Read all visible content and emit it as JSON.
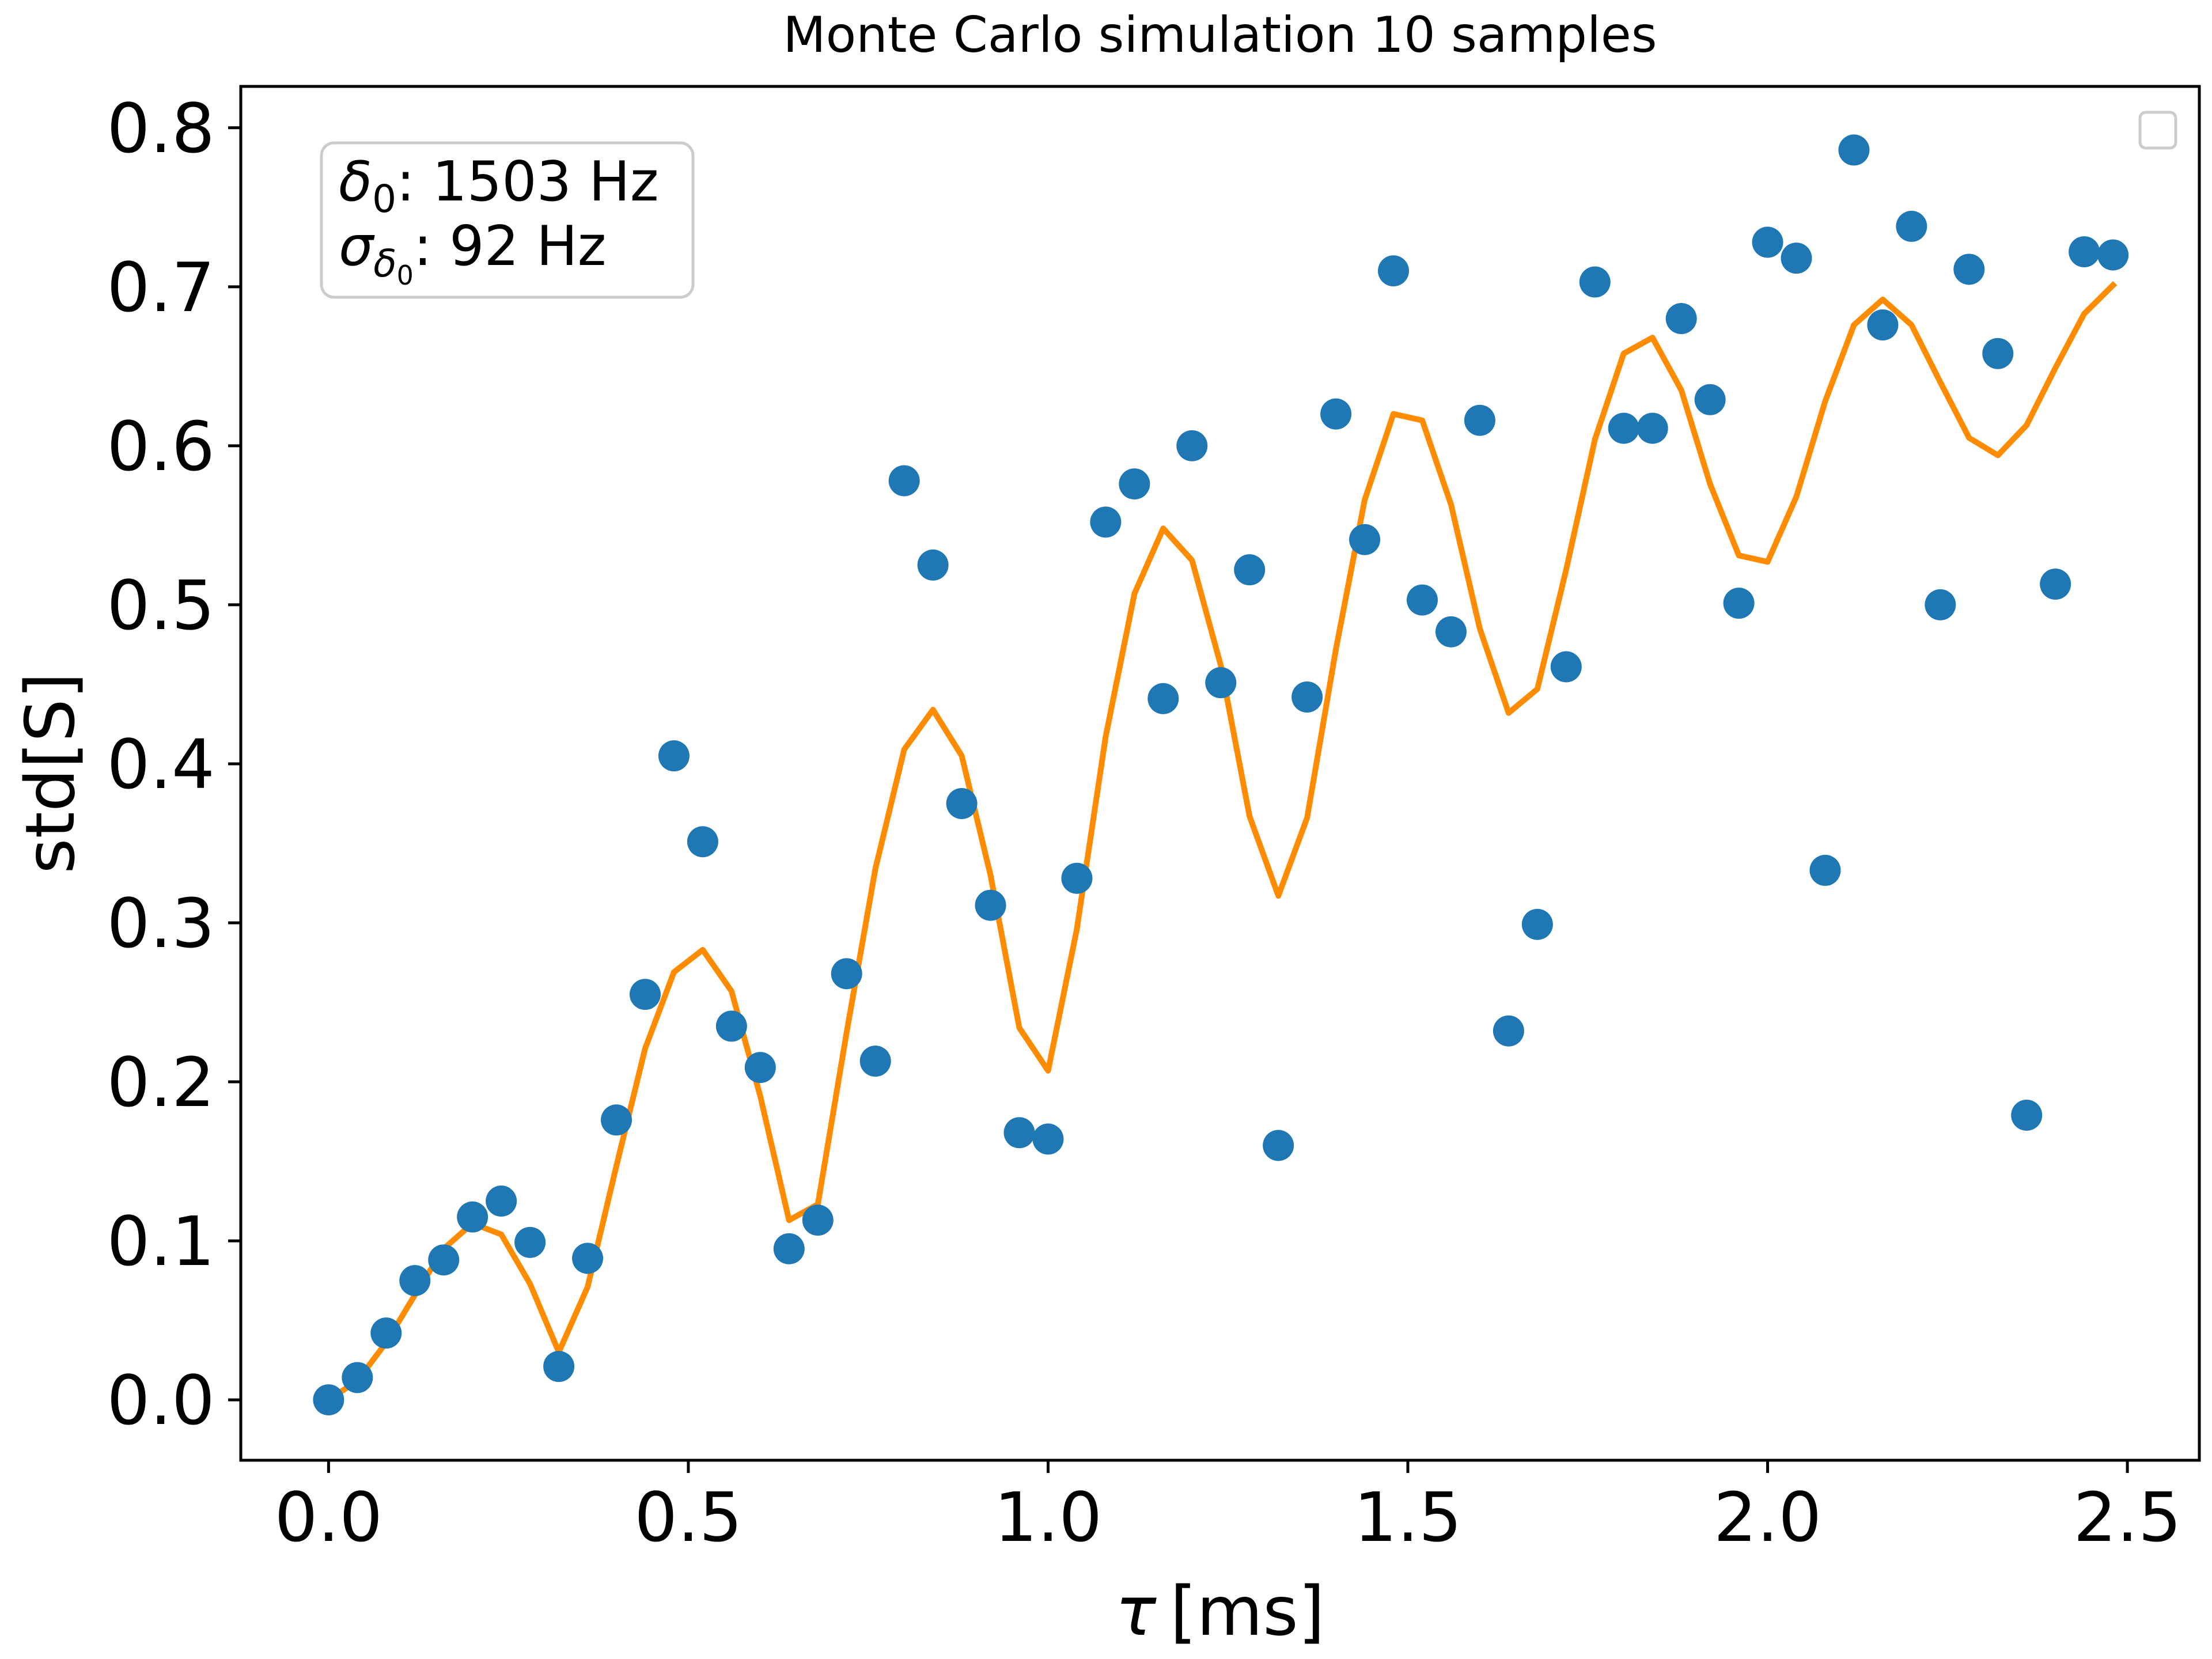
{
  "chart_data": {
    "type": "scatter",
    "title": "Monte Carlo simulation 10 samples",
    "xlabel_symbol": "τ",
    "xlabel_unit": "[ms]",
    "ylabel": "std[S]",
    "xlim": [
      -0.122,
      2.6
    ],
    "ylim": [
      -0.038,
      0.826
    ],
    "xticks": [
      0.0,
      0.5,
      1.0,
      1.5,
      2.0,
      2.5
    ],
    "xtick_labels": [
      "0.0",
      "0.5",
      "1.0",
      "1.5",
      "2.0",
      "2.5"
    ],
    "yticks": [
      0.0,
      0.1,
      0.2,
      0.3,
      0.4,
      0.5,
      0.6,
      0.7,
      0.8
    ],
    "ytick_labels": [
      "0.0",
      "0.1",
      "0.2",
      "0.3",
      "0.4",
      "0.5",
      "0.6",
      "0.7",
      "0.8"
    ],
    "grid": false,
    "legend": "upper right, empty",
    "annotation": {
      "line1_symbol": "δ",
      "line1_sub": "0",
      "line1_value": ": 1503 Hz",
      "line2_symbol": "σ",
      "line2_sub": "δ",
      "line2_subsub": "0",
      "line2_value": ": 92 Hz",
      "placement": "upper-left"
    },
    "colors": {
      "points": "#1f77b4",
      "line": "#ff8c00"
    },
    "series": [
      {
        "type": "scatter",
        "x": [
          0.0,
          0.04,
          0.08,
          0.12,
          0.16,
          0.2,
          0.24,
          0.28,
          0.32,
          0.36,
          0.4,
          0.44,
          0.48,
          0.52,
          0.56,
          0.6,
          0.64,
          0.68,
          0.72,
          0.76,
          0.8,
          0.84,
          0.88,
          0.92,
          0.96,
          1.0,
          1.04,
          1.08,
          1.12,
          1.16,
          1.2,
          1.24,
          1.28,
          1.32,
          1.36,
          1.4,
          1.44,
          1.48,
          1.52,
          1.56,
          1.6,
          1.64,
          1.68,
          1.72,
          1.76,
          1.8,
          1.84,
          1.88,
          1.92,
          1.96,
          2.0,
          2.04,
          2.08,
          2.12,
          2.16,
          2.2,
          2.24,
          2.28,
          2.32,
          2.36,
          2.4,
          2.44,
          2.48
        ],
        "y": [
          0.0,
          0.014,
          0.042,
          0.075,
          0.088,
          0.115,
          0.125,
          0.099,
          0.021,
          0.089,
          0.176,
          0.255,
          0.405,
          0.351,
          0.235,
          0.209,
          0.095,
          0.113,
          0.268,
          0.213,
          0.578,
          0.525,
          0.375,
          0.311,
          0.168,
          0.164,
          0.328,
          0.552,
          0.576,
          0.441,
          0.6,
          0.451,
          0.522,
          0.16,
          0.442,
          0.62,
          0.541,
          0.71,
          0.503,
          0.483,
          0.616,
          0.232,
          0.299,
          0.461,
          0.703,
          0.611,
          0.611,
          0.68,
          0.629,
          0.501,
          0.728,
          0.718,
          0.333,
          0.786,
          0.676,
          0.738,
          0.5,
          0.711,
          0.658,
          0.179,
          0.513,
          0.722,
          0.72
        ]
      },
      {
        "type": "line",
        "x": [
          0.0,
          0.04,
          0.08,
          0.12,
          0.16,
          0.2,
          0.24,
          0.28,
          0.32,
          0.36,
          0.4,
          0.44,
          0.48,
          0.52,
          0.56,
          0.6,
          0.64,
          0.68,
          0.72,
          0.76,
          0.8,
          0.84,
          0.88,
          0.92,
          0.96,
          1.0,
          1.04,
          1.08,
          1.12,
          1.16,
          1.2,
          1.24,
          1.28,
          1.32,
          1.36,
          1.4,
          1.44,
          1.48,
          1.52,
          1.56,
          1.6,
          1.64,
          1.68,
          1.72,
          1.76,
          1.8,
          1.84,
          1.88,
          1.92,
          1.96,
          2.0,
          2.04,
          2.08,
          2.12,
          2.16,
          2.2,
          2.24,
          2.28,
          2.32,
          2.36,
          2.4,
          2.44,
          2.48
        ],
        "y": [
          0.0,
          0.012,
          0.036,
          0.066,
          0.095,
          0.111,
          0.104,
          0.073,
          0.03,
          0.071,
          0.147,
          0.221,
          0.269,
          0.283,
          0.257,
          0.191,
          0.113,
          0.123,
          0.231,
          0.334,
          0.409,
          0.434,
          0.405,
          0.33,
          0.234,
          0.207,
          0.296,
          0.417,
          0.507,
          0.548,
          0.528,
          0.462,
          0.367,
          0.317,
          0.366,
          0.472,
          0.566,
          0.62,
          0.616,
          0.563,
          0.485,
          0.432,
          0.447,
          0.522,
          0.604,
          0.658,
          0.668,
          0.635,
          0.576,
          0.531,
          0.527,
          0.568,
          0.628,
          0.676,
          0.692,
          0.676,
          0.64,
          0.605,
          0.594,
          0.613,
          0.649,
          0.683,
          0.701
        ]
      }
    ]
  }
}
